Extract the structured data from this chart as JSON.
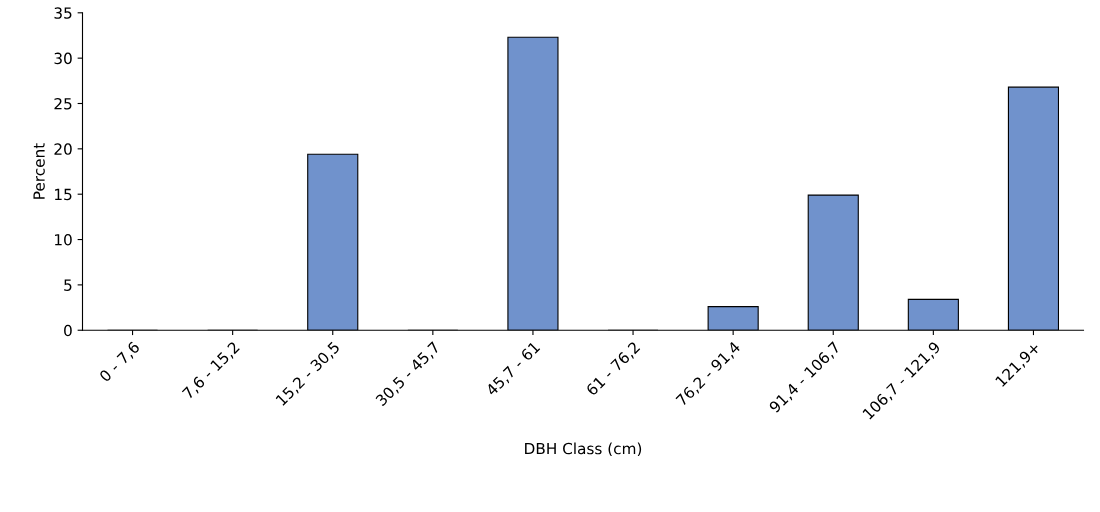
{
  "chart_data": {
    "type": "bar",
    "xlabel": "DBH Class (cm)",
    "ylabel": "Percent",
    "categories": [
      "0 - 7,6",
      "7,6 - 15,2",
      "15,2 - 30,5",
      "30,5 - 45,7",
      "45,7 - 61",
      "61 - 76,2",
      "76,2 - 91,4",
      "91,4 - 106,7",
      "106,7 - 121,9",
      "121,9+"
    ],
    "values": [
      0,
      0,
      19.4,
      0,
      32.3,
      0,
      2.6,
      14.9,
      3.4,
      26.8
    ],
    "color": "#7092cc",
    "ylim": [
      0,
      35
    ],
    "yticks": [
      0,
      5,
      10,
      15,
      20,
      25,
      30,
      35
    ],
    "grid": false,
    "legend": false
  }
}
